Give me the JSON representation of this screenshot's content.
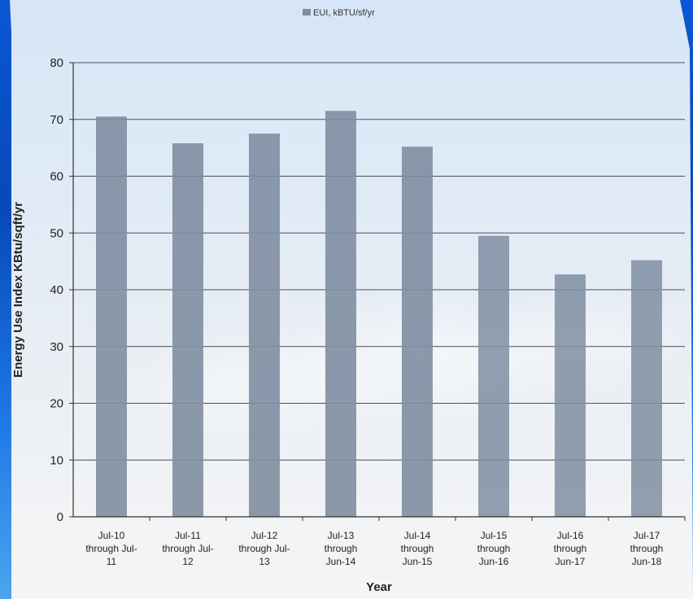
{
  "chart_data": {
    "type": "bar",
    "title": "",
    "legend": {
      "label": "EUI, kBTU/sf/yr",
      "position": "top-center"
    },
    "xlabel": "Year",
    "ylabel": "Energy Use Index KBtu/sqft/yr",
    "ylim": [
      0,
      80
    ],
    "yticks": [
      "0",
      "10",
      "20",
      "30",
      "40",
      "50",
      "60",
      "70",
      "80"
    ],
    "grid": true,
    "categories": [
      [
        "Jul-10",
        "through Jul-",
        "11"
      ],
      [
        "Jul-11",
        "through Jul-",
        "12"
      ],
      [
        "Jul-12",
        "through Jul-",
        "13"
      ],
      [
        "Jul-13",
        "through",
        "Jun-14"
      ],
      [
        "Jul-14",
        "through",
        "Jun-15"
      ],
      [
        "Jul-15",
        "through",
        "Jun-16"
      ],
      [
        "Jul-16",
        "through",
        "Jun-17"
      ],
      [
        "Jul-17",
        "through",
        "Jun-18"
      ]
    ],
    "series": [
      {
        "name": "EUI, kBTU/sf/yr",
        "color": "#7f8ea2",
        "values": [
          70.5,
          65.8,
          67.5,
          71.5,
          65.2,
          49.5,
          42.7,
          45.2
        ]
      }
    ]
  }
}
